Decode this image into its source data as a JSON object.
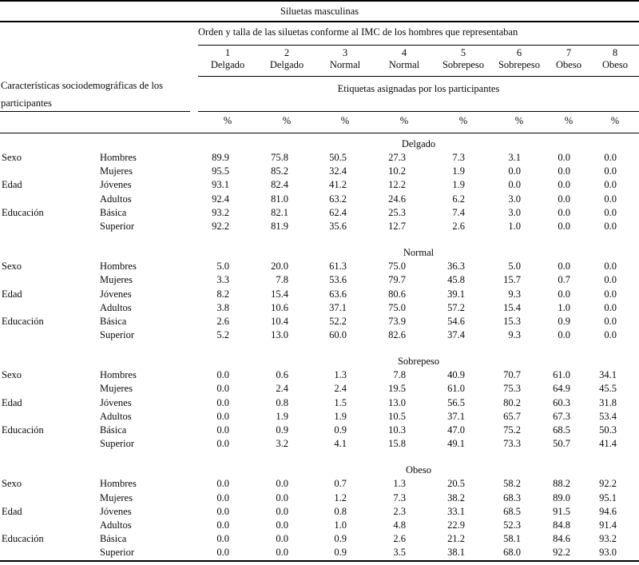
{
  "table": {
    "title": "Siluetas masculinas",
    "order_header": "Orden y talla de las siluetas conforme al IMC de los hombres que representaban",
    "left_header": "Características sociodemográficas de los participantes",
    "right_header": "Etiquetas asignadas por los participantes",
    "columns": [
      {
        "number": "1",
        "label": "Delgado"
      },
      {
        "number": "2",
        "label": "Delgado"
      },
      {
        "number": "3",
        "label": "Normal"
      },
      {
        "number": "4",
        "label": "Normal"
      },
      {
        "number": "5",
        "label": "Sobrepeso"
      },
      {
        "number": "6",
        "label": "Sobrepeso"
      },
      {
        "number": "7",
        "label": "Obeso"
      },
      {
        "number": "8",
        "label": "Obeso"
      }
    ],
    "percent_row": [
      "%",
      "%",
      "%",
      "%",
      "%",
      "%",
      "%",
      "%"
    ],
    "sections": [
      {
        "name": "Delgado",
        "rows": [
          {
            "category": "Sexo",
            "group": "Hombres",
            "values": [
              "89.9",
              "75.8",
              "50.5",
              "27.3",
              "7.3",
              "3.1",
              "0.0",
              "0.0"
            ]
          },
          {
            "category": "",
            "group": "Mujeres",
            "values": [
              "95.5",
              "85.2",
              "32.4",
              "10.2",
              "1.9",
              "0.0",
              "0.0",
              "0.0"
            ]
          },
          {
            "category": "Edad",
            "group": "Jóvenes",
            "values": [
              "93.1",
              "82.4",
              "41.2",
              "12.2",
              "1.9",
              "0.0",
              "0.0",
              "0.0"
            ]
          },
          {
            "category": "",
            "group": "Adultos",
            "values": [
              "92.4",
              "81.0",
              "63.2",
              "24.6",
              "6.2",
              "3.0",
              "0.0",
              "0.0"
            ]
          },
          {
            "category": "Educación",
            "group": "Básica",
            "values": [
              "93.2",
              "82.1",
              "62.4",
              "25.3",
              "7.4",
              "3.0",
              "0.0",
              "0.0"
            ]
          },
          {
            "category": "",
            "group": "Superior",
            "values": [
              "92.2",
              "81.9",
              "35.6",
              "12.7",
              "2.6",
              "1.0",
              "0.0",
              "0.0"
            ]
          }
        ]
      },
      {
        "name": "Normal",
        "rows": [
          {
            "category": "Sexo",
            "group": "Hombres",
            "values": [
              "5.0",
              "20.0",
              "61.3",
              "75.0",
              "36.3",
              "5.0",
              "0.0",
              "0.0"
            ]
          },
          {
            "category": "",
            "group": "Mujeres",
            "values": [
              "3.3",
              "7.8",
              "53.6",
              "79.7",
              "45.8",
              "15.7",
              "0.7",
              "0.0"
            ]
          },
          {
            "category": "Edad",
            "group": "Jóvenes",
            "values": [
              "8.2",
              "15.4",
              "63.6",
              "80.6",
              "39.1",
              "9.3",
              "0.0",
              "0.0"
            ]
          },
          {
            "category": "",
            "group": "Adultos",
            "values": [
              "3.8",
              "10.6",
              "37.1",
              "75.0",
              "57.2",
              "15.4",
              "1.0",
              "0.0"
            ]
          },
          {
            "category": "Educación",
            "group": "Básica",
            "values": [
              "2.6",
              "10.4",
              "52.2",
              "73.9",
              "54.6",
              "15.3",
              "0.9",
              "0.0"
            ]
          },
          {
            "category": "",
            "group": "Superior",
            "values": [
              "5.2",
              "13.0",
              "60.0",
              "82.6",
              "37.4",
              "9.3",
              "0.0",
              "0.0"
            ]
          }
        ]
      },
      {
        "name": "Sobrepeso",
        "rows": [
          {
            "category": "Sexo",
            "group": "Hombres",
            "values": [
              "0.0",
              "0.6",
              "1.3",
              "7.8",
              "40.9",
              "70.7",
              "61.0",
              "34.1"
            ]
          },
          {
            "category": "",
            "group": "Mujeres",
            "values": [
              "0.0",
              "2.4",
              "2.4",
              "19.5",
              "61.0",
              "75.3",
              "64.9",
              "45.5"
            ]
          },
          {
            "category": "Edad",
            "group": "Jóvenes",
            "values": [
              "0.0",
              "0.8",
              "1.5",
              "13.0",
              "56.5",
              "80.2",
              "60.3",
              "31.8"
            ]
          },
          {
            "category": "",
            "group": "Adultos",
            "values": [
              "0.0",
              "1.9",
              "1.9",
              "10.5",
              "37.1",
              "65.7",
              "67.3",
              "53.4"
            ]
          },
          {
            "category": "Educación",
            "group": "Básica",
            "values": [
              "0.0",
              "0.9",
              "0.9",
              "10.3",
              "47.0",
              "75.2",
              "68.5",
              "50.3"
            ]
          },
          {
            "category": "",
            "group": "Superior",
            "values": [
              "0.0",
              "3.2",
              "4.1",
              "15.8",
              "49.1",
              "73.3",
              "50.7",
              "41.4"
            ]
          }
        ]
      },
      {
        "name": "Obeso",
        "rows": [
          {
            "category": "Sexo",
            "group": "Hombres",
            "values": [
              "0.0",
              "0.0",
              "0.7",
              "1.3",
              "20.5",
              "58.2",
              "88.2",
              "92.2"
            ]
          },
          {
            "category": "",
            "group": "Mujeres",
            "values": [
              "0.0",
              "0.0",
              "1.2",
              "7.3",
              "38.2",
              "68.3",
              "89.0",
              "95.1"
            ]
          },
          {
            "category": "Edad",
            "group": "Jóvenes",
            "values": [
              "0.0",
              "0.0",
              "0.8",
              "2.3",
              "33.1",
              "68.5",
              "91.5",
              "94.6"
            ]
          },
          {
            "category": "",
            "group": "Adultos",
            "values": [
              "0.0",
              "0.0",
              "1.0",
              "4.8",
              "22.9",
              "52.3",
              "84.8",
              "91.4"
            ]
          },
          {
            "category": "Educación",
            "group": "Básica",
            "values": [
              "0.0",
              "0.0",
              "0.9",
              "2.6",
              "21.2",
              "58.1",
              "84.6",
              "93.2"
            ]
          },
          {
            "category": "",
            "group": "Superior",
            "values": [
              "0.0",
              "0.0",
              "0.9",
              "3.5",
              "38.1",
              "68.0",
              "92.2",
              "93.0"
            ]
          }
        ]
      }
    ]
  }
}
